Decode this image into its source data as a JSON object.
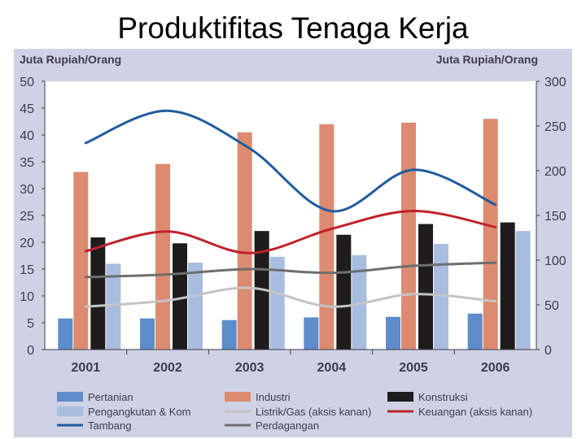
{
  "slide": {
    "title": "Produktifitas Tenaga Kerja"
  },
  "colors": {
    "panel_bg": "#cfd2e4",
    "plot_bg": "#ffffff",
    "axis_text": "#3d3d4d",
    "pertanian": "#5f8ccb",
    "industri": "#dc8b70",
    "konstruksi": "#1f1c1d",
    "pengangkutan": "#a9bde0",
    "listrik": "#c4c4c4",
    "keuangan": "#c0222c",
    "tambang": "#1f5c9e",
    "perdagangan": "#6e6e6e"
  },
  "chart_data": {
    "type": "bar",
    "ylabel": "Juta Rupiah/Orang",
    "y2label": "Juta Rupiah/Orang",
    "categories": [
      "2001",
      "2002",
      "2003",
      "2004",
      "2005",
      "2006"
    ],
    "ylim": [
      0,
      50
    ],
    "y2lim": [
      0,
      300
    ],
    "yticks": [
      "0",
      "5",
      "10",
      "15",
      "20",
      "25",
      "30",
      "35",
      "40",
      "45",
      "50"
    ],
    "y2ticks": [
      "0",
      "50",
      "100",
      "150",
      "200",
      "250",
      "300"
    ],
    "grid": false,
    "legend_position": "bottom",
    "bar_series": [
      {
        "name": "Pertanian",
        "key": "pertanian",
        "values": [
          5.8,
          5.8,
          5.5,
          6.0,
          6.1,
          6.7
        ]
      },
      {
        "name": "Industri",
        "key": "industri",
        "values": [
          33.1,
          34.6,
          40.5,
          42.0,
          42.3,
          43.0
        ]
      },
      {
        "name": "Konstruksi",
        "key": "konstruksi",
        "values": [
          20.9,
          19.8,
          22.1,
          21.4,
          23.4,
          23.7
        ]
      },
      {
        "name": "Pengangkutan & Kom",
        "key": "pengangkutan",
        "values": [
          16.0,
          16.2,
          17.3,
          17.6,
          19.7,
          22.1
        ]
      }
    ],
    "line_series": [
      {
        "name": "Listrik/Gas (aksis kanan)",
        "key": "listrik",
        "axis": "right",
        "x": [
          2001,
          2002,
          2003,
          2004,
          2005,
          2006
        ],
        "values": [
          48,
          55,
          69,
          48,
          62,
          54
        ]
      },
      {
        "name": "Keuangan (aksis kanan)",
        "key": "keuangan",
        "axis": "right",
        "x": [
          2001,
          2002,
          2003,
          2004,
          2005,
          2006
        ],
        "values": [
          110,
          132,
          108,
          135,
          155,
          137
        ]
      },
      {
        "name": "Tambang",
        "key": "tambang",
        "axis": "left",
        "x": [
          2001,
          2002,
          2003,
          2004,
          2005,
          2006
        ],
        "values": [
          38.5,
          44.5,
          37.5,
          25.8,
          33.5,
          27.0
        ]
      },
      {
        "name": "Perdagangan",
        "key": "perdagangan",
        "axis": "left",
        "x": [
          2001,
          2002,
          2003,
          2004,
          2005,
          2006
        ],
        "values": [
          13.5,
          14.0,
          15.0,
          14.3,
          15.6,
          16.2
        ]
      }
    ],
    "legend": [
      {
        "name": "Pertanian",
        "key": "pertanian",
        "kind": "box"
      },
      {
        "name": "Industri",
        "key": "industri",
        "kind": "box"
      },
      {
        "name": "Konstruksi",
        "key": "konstruksi",
        "kind": "box"
      },
      {
        "name": "Pengangkutan & Kom",
        "key": "pengangkutan",
        "kind": "box"
      },
      {
        "name": "Listrik/Gas (aksis kanan)",
        "key": "listrik",
        "kind": "line"
      },
      {
        "name": "Keuangan (aksis kanan)",
        "key": "keuangan",
        "kind": "line"
      },
      {
        "name": "Tambang",
        "key": "tambang",
        "kind": "line"
      },
      {
        "name": "Perdagangan",
        "key": "perdagangan",
        "kind": "line"
      }
    ]
  }
}
